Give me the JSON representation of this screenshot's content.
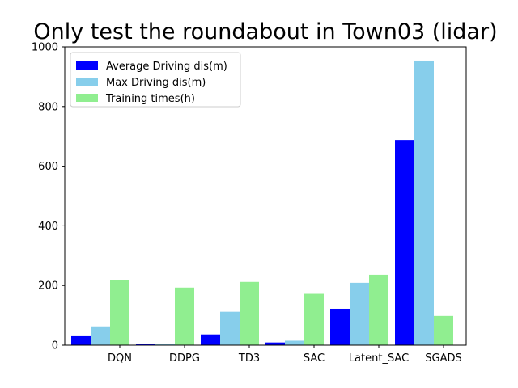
{
  "chart_data": {
    "type": "bar",
    "title": "Only test the roundabout in Town03  (lidar)",
    "xlabel": "",
    "ylabel": "",
    "categories": [
      "DQN",
      "DDPG",
      "TD3",
      "SAC",
      "Latent_SAC",
      "SGADS"
    ],
    "series": [
      {
        "name": "Average Driving dis(m)",
        "color": "#0000ff",
        "values": [
          30,
          3,
          36,
          9,
          122,
          688
        ]
      },
      {
        "name": "Max Driving dis(m)",
        "color": "#87ceeb",
        "values": [
          63,
          3,
          112,
          15,
          209,
          954
        ]
      },
      {
        "name": "Training times(h)",
        "color": "#90ee90",
        "values": [
          218,
          193,
          212,
          172,
          236,
          98
        ]
      }
    ],
    "ylim": [
      0,
      1000
    ],
    "yticks": [
      0,
      200,
      400,
      600,
      800,
      1000
    ],
    "grid": false,
    "legend_position": "top-left"
  }
}
